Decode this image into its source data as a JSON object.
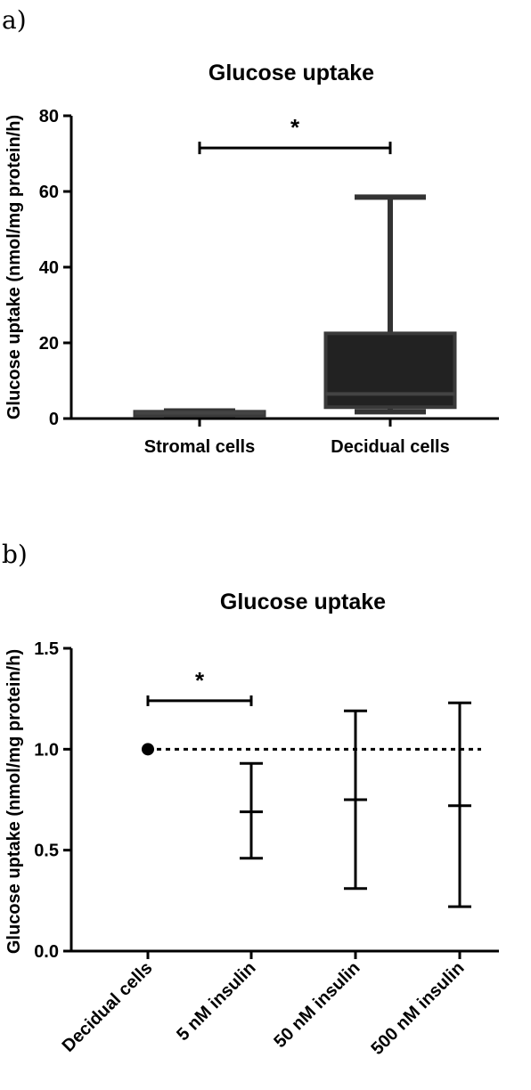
{
  "chart_data": [
    {
      "panel_label": "a)",
      "type": "box",
      "title": "Glucose uptake",
      "ylabel": "Glucose uptake (nmol/mg protein/h)",
      "ylim": [
        0,
        80
      ],
      "yticks": [
        "0",
        "20",
        "40",
        "60",
        "80"
      ],
      "categories": [
        "Stromal cells",
        "Decidual cells"
      ],
      "boxes": [
        {
          "min": 1.0,
          "q1": 1.2,
          "median": 1.5,
          "q3": 1.8,
          "max": 2.0
        },
        {
          "min": 1.8,
          "q1": 3.0,
          "median": 6.5,
          "q3": 22.5,
          "max": 58.5
        }
      ],
      "significance": {
        "from": 0,
        "to": 1,
        "y": 71.5,
        "label": "*"
      }
    },
    {
      "panel_label": "b)",
      "type": "errorbar",
      "title": "Glucose uptake",
      "ylabel": "Glucose uptake (nmol/mg protein/h)",
      "ylim": [
        0,
        1.5
      ],
      "yticks": [
        "0.0",
        "0.5",
        "1.0",
        "1.5"
      ],
      "categories": [
        "Decidual cells",
        "5 nM insulin",
        "50 nM insulin",
        "500 nM insulin"
      ],
      "points": [
        {
          "mean": 1.0,
          "low": 1.0,
          "high": 1.0
        },
        {
          "mean": 0.69,
          "low": 0.46,
          "high": 0.93
        },
        {
          "mean": 0.75,
          "low": 0.31,
          "high": 1.19
        },
        {
          "mean": 0.72,
          "low": 0.22,
          "high": 1.23
        }
      ],
      "reference_line": 1.0,
      "significance": {
        "from": 0,
        "to": 1,
        "y": 1.24,
        "label": "*"
      }
    }
  ]
}
